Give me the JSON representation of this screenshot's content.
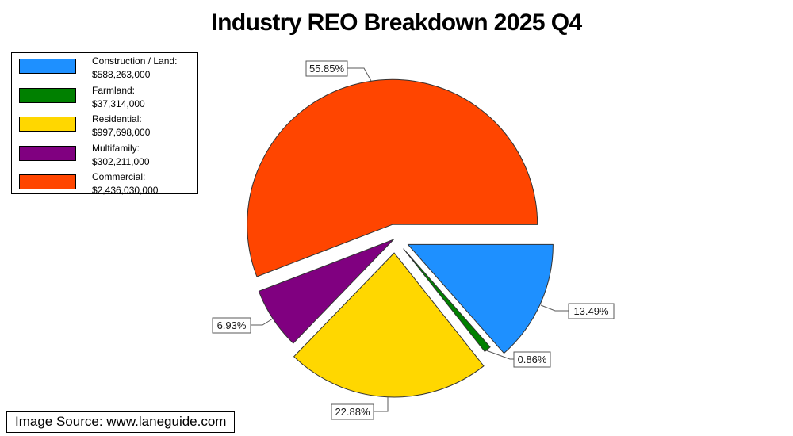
{
  "chart_data": {
    "type": "pie",
    "title": "Industry REO Breakdown 2025 Q4",
    "legend_position": "upper-left",
    "outline_color": "#333333",
    "callout_border_color": "#595959",
    "slices": [
      {
        "label": "Construction / Land",
        "legend_label": "Construction / Land:",
        "value": 588263000,
        "value_label": "$588,263,000",
        "percent": 13.49,
        "percent_label": "13.49%",
        "color": "#1E90FF"
      },
      {
        "label": "Farmland",
        "legend_label": "Farmland:",
        "value": 37314000,
        "value_label": "$37,314,000",
        "percent": 0.86,
        "percent_label": "0.86%",
        "color": "#008000"
      },
      {
        "label": "Residential",
        "legend_label": "Residential:",
        "value": 997698000,
        "value_label": "$997,698,000",
        "percent": 22.88,
        "percent_label": "22.88%",
        "color": "#FFD700"
      },
      {
        "label": "Multifamily",
        "legend_label": "Multifamily:",
        "value": 302211000,
        "value_label": "$302,211,000",
        "percent": 6.93,
        "percent_label": "6.93%",
        "color": "#800080"
      },
      {
        "label": "Commercial",
        "legend_label": "Commercial:",
        "value": 2436030000,
        "value_label": "$2,436,030,000",
        "percent": 55.85,
        "percent_label": "55.85%",
        "color": "#FF4500"
      }
    ]
  },
  "source": {
    "text": "Image Source: www.laneguide.com"
  }
}
